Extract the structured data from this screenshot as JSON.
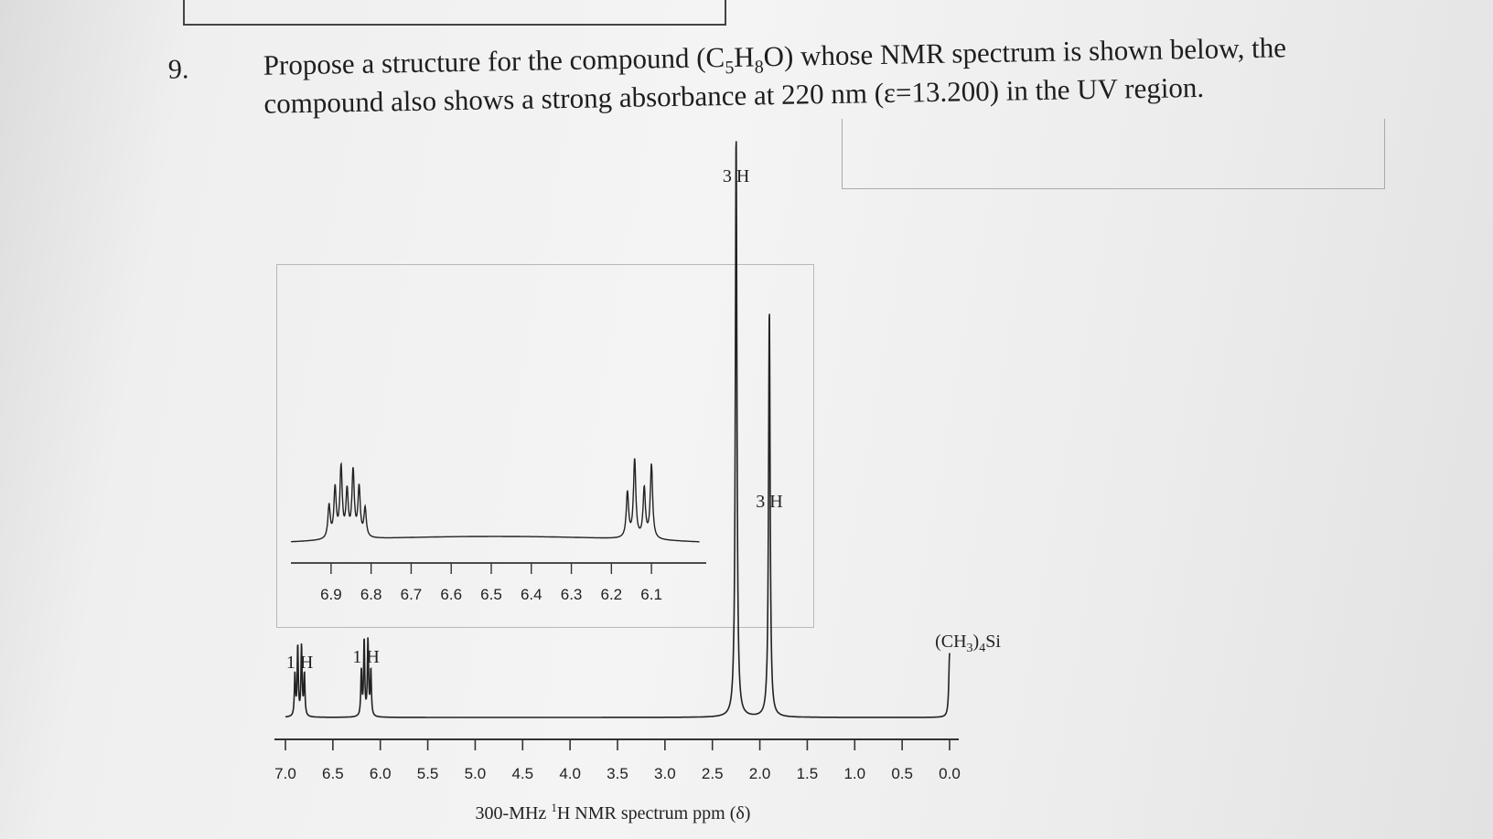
{
  "question": {
    "number": "9.",
    "line1": "Propose a structure for the compound (C5H8O) whose NMR spectrum is shown below, the",
    "line2": "compound also shows a strong absorbance at 220 nm (ε=13.200) in the UV region."
  },
  "chart_data": {
    "type": "line",
    "xlabel": "300-MHz 1H NMR spectrum ppm (δ)",
    "x_reversed": true,
    "xlim": [
      7.0,
      0.0
    ],
    "ticks": [
      "7.0",
      "6.5",
      "6.0",
      "5.5",
      "5.0",
      "4.5",
      "4.0",
      "3.5",
      "3.0",
      "2.5",
      "2.0",
      "1.5",
      "1.0",
      "0.5",
      "0.0"
    ],
    "peaks": [
      {
        "ppm": 6.85,
        "integration": "1 H",
        "relative_height": 0.12,
        "type": "multiplet"
      },
      {
        "ppm": 6.15,
        "integration": "1 H",
        "relative_height": 0.13,
        "type": "multiplet"
      },
      {
        "ppm": 2.25,
        "integration": "3 H",
        "relative_height": 1.0,
        "type": "singlet"
      },
      {
        "ppm": 1.9,
        "integration": "3 H",
        "relative_height": 0.7,
        "type": "singlet"
      },
      {
        "ppm": 0.0,
        "label": "(CH3)4Si",
        "relative_height": 0.11,
        "type": "singlet"
      }
    ],
    "inset": {
      "xlim": [
        6.95,
        6.05
      ],
      "ticks": [
        "6.9",
        "6.8",
        "6.7",
        "6.6",
        "6.5",
        "6.4",
        "6.3",
        "6.2",
        "6.1"
      ]
    }
  }
}
